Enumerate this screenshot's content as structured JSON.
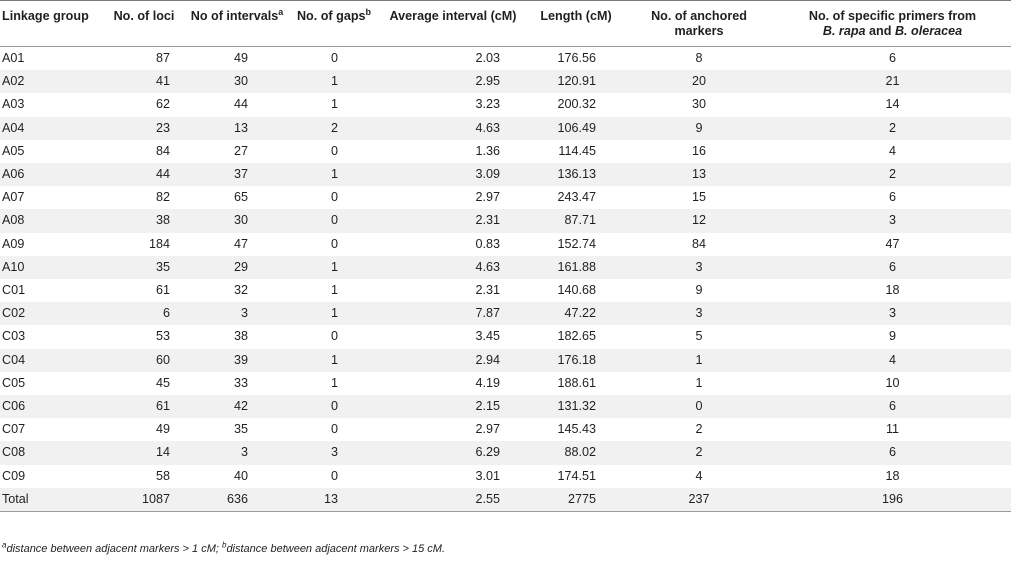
{
  "table": {
    "headers": {
      "linkage_group": "Linkage group",
      "no_loci": "No. of loci",
      "no_intervals": "No of intervals",
      "no_intervals_sup": "a",
      "no_gaps": "No. of gaps",
      "no_gaps_sup": "b",
      "avg_interval": "Average interval (cM)",
      "length": "Length (cM)",
      "anchored_line1": "No. of anchored",
      "anchored_line2": "markers",
      "primers_line1": "No. of specific primers from",
      "primers_species1": "B. rapa",
      "primers_and": " and ",
      "primers_species2": "B. oleracea"
    },
    "rows": [
      [
        "A01",
        "87",
        "49",
        "0",
        "2.03",
        "176.56",
        "8",
        "6"
      ],
      [
        "A02",
        "41",
        "30",
        "1",
        "2.95",
        "120.91",
        "20",
        "21"
      ],
      [
        "A03",
        "62",
        "44",
        "1",
        "3.23",
        "200.32",
        "30",
        "14"
      ],
      [
        "A04",
        "23",
        "13",
        "2",
        "4.63",
        "106.49",
        "9",
        "2"
      ],
      [
        "A05",
        "84",
        "27",
        "0",
        "1.36",
        "114.45",
        "16",
        "4"
      ],
      [
        "A06",
        "44",
        "37",
        "1",
        "3.09",
        "136.13",
        "13",
        "2"
      ],
      [
        "A07",
        "82",
        "65",
        "0",
        "2.97",
        "243.47",
        "15",
        "6"
      ],
      [
        "A08",
        "38",
        "30",
        "0",
        "2.31",
        "87.71",
        "12",
        "3"
      ],
      [
        "A09",
        "184",
        "47",
        "0",
        "0.83",
        "152.74",
        "84",
        "47"
      ],
      [
        "A10",
        "35",
        "29",
        "1",
        "4.63",
        "161.88",
        "3",
        "6"
      ],
      [
        "C01",
        "61",
        "32",
        "1",
        "2.31",
        "140.68",
        "9",
        "18"
      ],
      [
        "C02",
        "6",
        "3",
        "1",
        "7.87",
        "47.22",
        "3",
        "3"
      ],
      [
        "C03",
        "53",
        "38",
        "0",
        "3.45",
        "182.65",
        "5",
        "9"
      ],
      [
        "C04",
        "60",
        "39",
        "1",
        "2.94",
        "176.18",
        "1",
        "4"
      ],
      [
        "C05",
        "45",
        "33",
        "1",
        "4.19",
        "188.61",
        "1",
        "10"
      ],
      [
        "C06",
        "61",
        "42",
        "0",
        "2.15",
        "131.32",
        "0",
        "6"
      ],
      [
        "C07",
        "49",
        "35",
        "0",
        "2.97",
        "145.43",
        "2",
        "11"
      ],
      [
        "C08",
        "14",
        "3",
        "3",
        "6.29",
        "88.02",
        "2",
        "6"
      ],
      [
        "C09",
        "58",
        "40",
        "0",
        "3.01",
        "174.51",
        "4",
        "18"
      ],
      [
        "Total",
        "1087",
        "636",
        "13",
        "2.55",
        "2775",
        "237",
        "196"
      ]
    ]
  },
  "footnote": {
    "a_mark": "a",
    "a_text": "distance between adjacent markers > 1 cM; ",
    "b_mark": "b",
    "b_text": "distance between adjacent markers > 15 cM."
  }
}
